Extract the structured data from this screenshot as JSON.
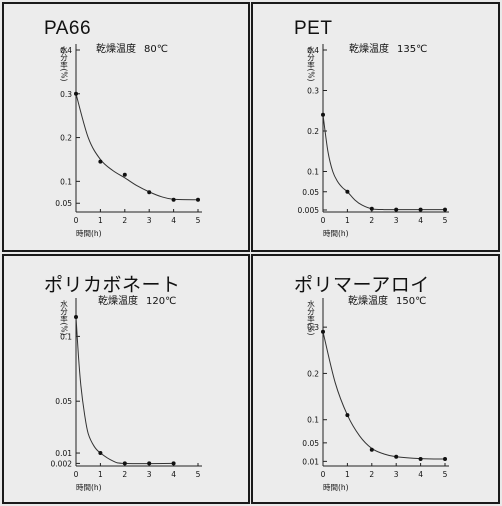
{
  "chart_data": [
    {
      "type": "line",
      "title": "PA66",
      "condition_label": "乾燥温度",
      "condition_value": "80℃",
      "ylabel": "水分率(%)",
      "xlabel": "時間(h)",
      "xlim": [
        0,
        5
      ],
      "ylim": [
        0.03,
        0.4
      ],
      "xticks": [
        "0",
        "1",
        "2",
        "3",
        "4",
        "5"
      ],
      "yticks": [
        "0.4",
        "0.3",
        "0.2",
        "0.1",
        "0.05"
      ],
      "ytick_values": [
        0.4,
        0.3,
        0.2,
        0.1,
        0.05
      ],
      "points": [
        [
          0,
          0.3
        ],
        [
          1,
          0.145
        ],
        [
          2,
          0.115
        ],
        [
          3,
          0.075
        ],
        [
          4,
          0.058
        ],
        [
          5,
          0.058
        ]
      ],
      "curve": [
        [
          0,
          0.3
        ],
        [
          0.5,
          0.2
        ],
        [
          1,
          0.15
        ],
        [
          1.5,
          0.125
        ],
        [
          2,
          0.108
        ],
        [
          2.5,
          0.09
        ],
        [
          3,
          0.076
        ],
        [
          3.5,
          0.065
        ],
        [
          4,
          0.059
        ],
        [
          5,
          0.058
        ]
      ]
    },
    {
      "type": "line",
      "title": "PET",
      "condition_label": "乾燥温度",
      "condition_value": "135℃",
      "ylabel": "水分率(%)",
      "xlabel": "時間(h)",
      "xlim": [
        0,
        5
      ],
      "ylim": [
        0,
        0.4
      ],
      "xticks": [
        "0",
        "1",
        "2",
        "3",
        "4",
        "5"
      ],
      "yticks": [
        "0.4",
        "0.3",
        "0.2",
        "0.1",
        "0.05",
        "0.005"
      ],
      "ytick_values": [
        0.4,
        0.3,
        0.2,
        0.1,
        0.05,
        0.005
      ],
      "points": [
        [
          0,
          0.24
        ],
        [
          1,
          0.05
        ],
        [
          2,
          0.008
        ],
        [
          3,
          0.006
        ],
        [
          4,
          0.006
        ],
        [
          5,
          0.006
        ]
      ],
      "curve": [
        [
          0,
          0.24
        ],
        [
          0.2,
          0.15
        ],
        [
          0.4,
          0.1
        ],
        [
          0.6,
          0.075
        ],
        [
          0.8,
          0.06
        ],
        [
          1,
          0.05
        ],
        [
          1.3,
          0.03
        ],
        [
          1.6,
          0.017
        ],
        [
          2,
          0.008
        ],
        [
          2.5,
          0.006
        ],
        [
          5,
          0.006
        ]
      ]
    },
    {
      "type": "line",
      "title": "ポリカボネート",
      "condition_label": "乾燥温度",
      "condition_value": "120℃",
      "ylabel": "水分率(%)",
      "xlabel": "時間(h)",
      "xlim": [
        0,
        5
      ],
      "ylim": [
        0,
        0.125
      ],
      "xticks": [
        "0",
        "1",
        "2",
        "3",
        "4",
        "5"
      ],
      "yticks": [
        "0.1",
        "0.05",
        "0.01",
        "0.002"
      ],
      "ytick_values": [
        0.1,
        0.05,
        0.01,
        0.002
      ],
      "points": [
        [
          0,
          0.115
        ],
        [
          1,
          0.01
        ],
        [
          2,
          0.002
        ],
        [
          3,
          0.002
        ],
        [
          4,
          0.002
        ]
      ],
      "curve": [
        [
          0,
          0.115
        ],
        [
          0.1,
          0.085
        ],
        [
          0.2,
          0.062
        ],
        [
          0.35,
          0.04
        ],
        [
          0.5,
          0.025
        ],
        [
          0.75,
          0.015
        ],
        [
          1,
          0.01
        ],
        [
          1.5,
          0.004
        ],
        [
          2,
          0.002
        ],
        [
          4,
          0.002
        ]
      ]
    },
    {
      "type": "line",
      "title": "ポリマーアロイ",
      "condition_label": "乾燥温度",
      "condition_value": "150℃",
      "ylabel": "水分率(%)",
      "xlabel": "時間(h)",
      "xlim": [
        0,
        5
      ],
      "ylim": [
        0,
        0.35
      ],
      "xticks": [
        "0",
        "1",
        "2",
        "3",
        "4",
        "5"
      ],
      "yticks": [
        "0.3",
        "0.2",
        "0.1",
        "0.05",
        "0.01"
      ],
      "ytick_values": [
        0.3,
        0.2,
        0.1,
        0.05,
        0.01
      ],
      "points": [
        [
          0,
          0.29
        ],
        [
          1,
          0.11
        ],
        [
          2,
          0.035
        ],
        [
          3,
          0.02
        ],
        [
          4,
          0.015
        ],
        [
          5,
          0.015
        ]
      ],
      "curve": [
        [
          0,
          0.29
        ],
        [
          0.5,
          0.18
        ],
        [
          1,
          0.11
        ],
        [
          1.5,
          0.065
        ],
        [
          2,
          0.038
        ],
        [
          2.5,
          0.026
        ],
        [
          3,
          0.02
        ],
        [
          4,
          0.016
        ],
        [
          5,
          0.015
        ]
      ]
    }
  ]
}
